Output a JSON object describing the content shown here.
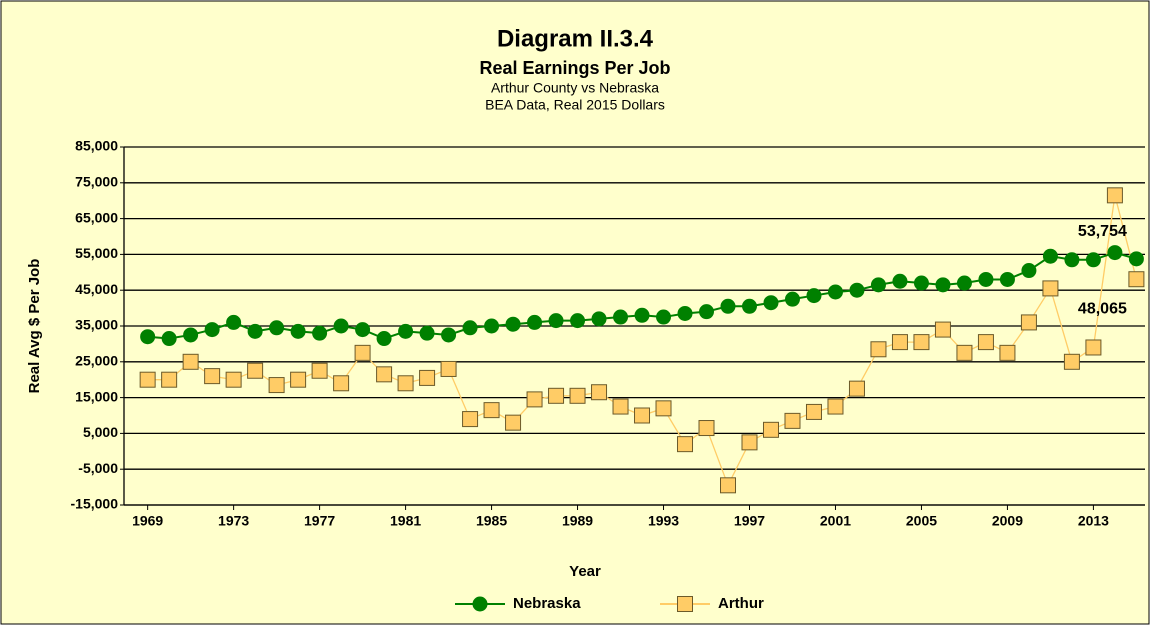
{
  "chart_data": {
    "type": "line",
    "title": "Diagram II.3.4",
    "subtitle": "Real Earnings Per Job",
    "subtitle2": "Arthur County vs Nebraska",
    "subtitle3": "BEA Data, Real 2015 Dollars",
    "x_label": "Year",
    "y_label": "Real Avg $ Per Job",
    "x": [
      1969,
      1970,
      1971,
      1972,
      1973,
      1974,
      1975,
      1976,
      1977,
      1978,
      1979,
      1980,
      1981,
      1982,
      1983,
      1984,
      1985,
      1986,
      1987,
      1988,
      1989,
      1990,
      1991,
      1992,
      1993,
      1994,
      1995,
      1996,
      1997,
      1998,
      1999,
      2000,
      2001,
      2002,
      2003,
      2004,
      2005,
      2006,
      2007,
      2008,
      2009,
      2010,
      2011,
      2012,
      2013,
      2014,
      2015
    ],
    "xlim": [
      1967.9,
      2015.4
    ],
    "xticks": [
      1969,
      1973,
      1977,
      1981,
      1985,
      1989,
      1993,
      1997,
      2001,
      2005,
      2009,
      2013
    ],
    "ylim": [
      -15000,
      85000
    ],
    "yticks": [
      {
        "value": -15000,
        "label": "-15,000"
      },
      {
        "value": -5000,
        "label": "-5,000"
      },
      {
        "value": 5000,
        "label": "5,000"
      },
      {
        "value": 15000,
        "label": "15,000"
      },
      {
        "value": 25000,
        "label": "25,000"
      },
      {
        "value": 35000,
        "label": "35,000"
      },
      {
        "value": 45000,
        "label": "45,000"
      },
      {
        "value": 55000,
        "label": "55,000"
      },
      {
        "value": 65000,
        "label": "65,000"
      },
      {
        "value": 75000,
        "label": "75,000"
      },
      {
        "value": 85000,
        "label": "85,000"
      }
    ],
    "grid": true,
    "legend": "bottom",
    "series": [
      {
        "name": "Nebraska",
        "color": "#008000",
        "marker": "circle",
        "values": [
          32000,
          31500,
          32500,
          34000,
          36000,
          33500,
          34500,
          33500,
          33000,
          35000,
          34000,
          31500,
          33500,
          33000,
          32500,
          34500,
          35000,
          35500,
          36000,
          36500,
          36500,
          37000,
          37500,
          38000,
          37500,
          38500,
          39000,
          40500,
          40500,
          41500,
          42500,
          43500,
          44500,
          45000,
          46500,
          47500,
          47000,
          46500,
          47000,
          48000,
          48000,
          50500,
          54500,
          53500,
          53500,
          55500,
          53754
        ],
        "value_labels": [
          null,
          null,
          null,
          null,
          null,
          null,
          null,
          null,
          null,
          null,
          null,
          null,
          null,
          null,
          null,
          null,
          null,
          null,
          null,
          null,
          null,
          null,
          null,
          null,
          null,
          null,
          null,
          null,
          null,
          null,
          null,
          null,
          null,
          null,
          null,
          null,
          null,
          null,
          null,
          null,
          null,
          null,
          null,
          null,
          null,
          null,
          "53,754"
        ]
      },
      {
        "name": "Arthur",
        "color": "#FFCC66",
        "marker": "square",
        "values": [
          20000,
          20000,
          25000,
          21000,
          20000,
          22500,
          18500,
          20000,
          22500,
          19000,
          27500,
          21500,
          19000,
          20500,
          23000,
          9000,
          11500,
          8000,
          14500,
          15500,
          15500,
          16500,
          12500,
          10000,
          12000,
          2000,
          6500,
          -9500,
          2500,
          6000,
          8500,
          11000,
          12500,
          17500,
          28500,
          30500,
          30500,
          34000,
          27500,
          30500,
          27500,
          36000,
          45500,
          25000,
          29000,
          71500,
          48065
        ],
        "value_labels": [
          null,
          null,
          null,
          null,
          null,
          null,
          null,
          null,
          null,
          null,
          null,
          null,
          null,
          null,
          null,
          null,
          null,
          null,
          null,
          null,
          null,
          null,
          null,
          null,
          null,
          null,
          null,
          null,
          null,
          null,
          null,
          null,
          null,
          null,
          null,
          null,
          null,
          null,
          null,
          null,
          null,
          null,
          null,
          null,
          null,
          null,
          "48,065"
        ]
      }
    ]
  }
}
